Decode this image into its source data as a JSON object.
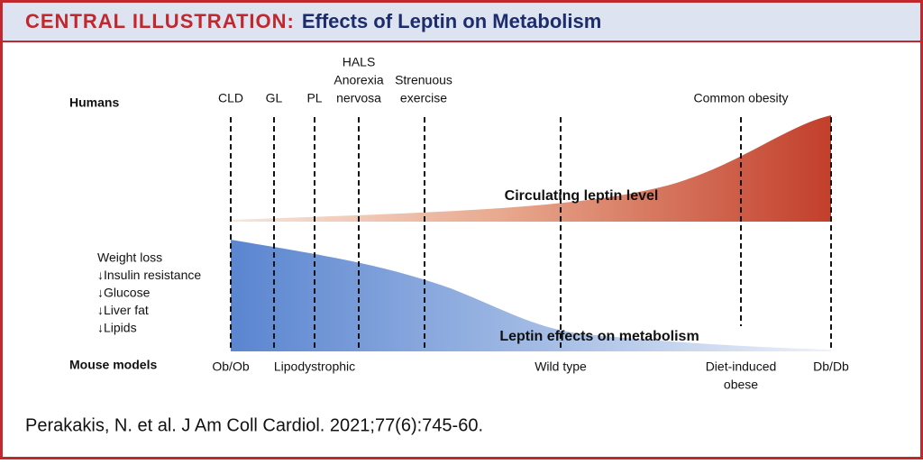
{
  "header": {
    "label": "CENTRAL ILLUSTRATION:",
    "title": "Effects of Leptin on Metabolism"
  },
  "humans": {
    "label": "Humans",
    "markers": [
      [
        "CLD"
      ],
      [
        "GL"
      ],
      [
        "PL"
      ],
      [
        "HALS",
        "Anorexia",
        "nervosa"
      ],
      [
        "Strenuous",
        "exercise"
      ],
      [
        "Common obesity"
      ]
    ]
  },
  "curves": {
    "leptin_level": "Circulating leptin level",
    "leptin_effects": "Leptin effects on metabolism"
  },
  "effects": [
    "Weight loss",
    "↓Insulin resistance",
    "↓Glucose",
    "↓Liver fat",
    "↓Lipids"
  ],
  "mouse_models": {
    "label": "Mouse models",
    "markers": [
      [
        "Ob/Ob"
      ],
      [
        "Lipodystrophic"
      ],
      [
        "Wild type"
      ],
      [
        "Diet-induced",
        "obese"
      ],
      [
        "Db/Db"
      ]
    ]
  },
  "citation": "Perakakis, N. et al. J Am Coll Cardiol. 2021;77(6):745-60."
}
